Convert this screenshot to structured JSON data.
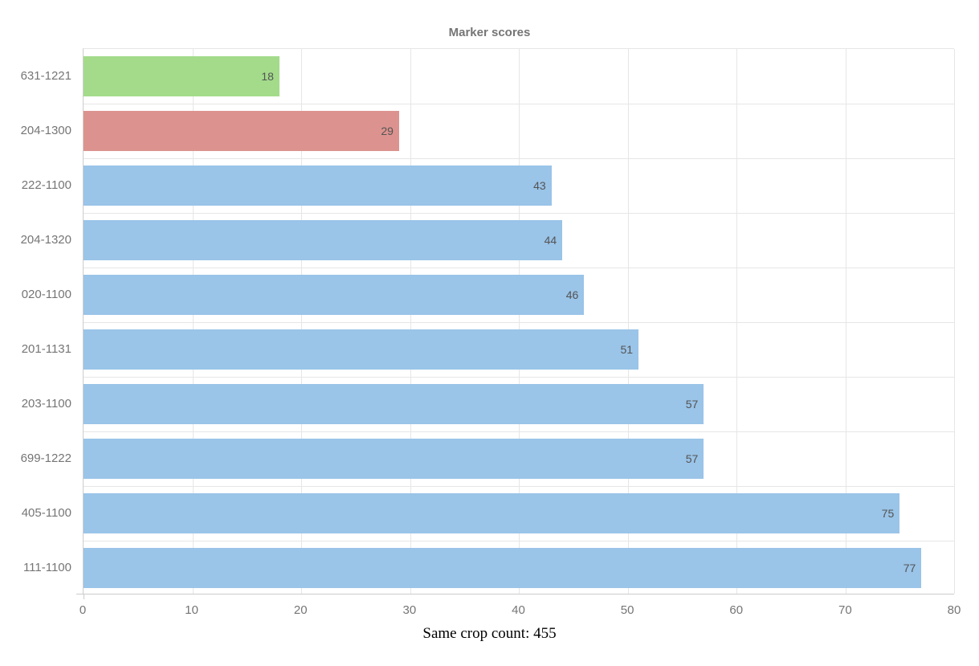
{
  "chart_data": {
    "type": "bar",
    "orientation": "horizontal",
    "title": "Marker scores",
    "categories": [
      "631-1221",
      "204-1300",
      "222-1100",
      "204-1320",
      "020-1100",
      "201-1131",
      "203-1100",
      "699-1222",
      "405-1100",
      "111-1100"
    ],
    "values": [
      18,
      29,
      43,
      44,
      46,
      51,
      57,
      57,
      75,
      77
    ],
    "bar_colors": [
      "#a3db8b",
      "#dc938f",
      "#9ac4e8",
      "#9ac4e8",
      "#9ac4e8",
      "#9ac4e8",
      "#9ac4e8",
      "#9ac4e8",
      "#9ac4e8",
      "#9ac4e8"
    ],
    "xlim": [
      0,
      80
    ],
    "x_ticks": [
      "0",
      "10",
      "20",
      "30",
      "40",
      "50",
      "60",
      "70",
      "80"
    ],
    "xlabel": "",
    "ylabel": "",
    "grid": true,
    "legend": "none",
    "value_labels": "inside-end"
  },
  "caption": "Same crop count: 455",
  "colors": {
    "title_text": "#757575",
    "category_text": "#757575",
    "axis_tick_text": "#757575",
    "value_label_text": "#545454",
    "gridline": "#e6e6e6",
    "axis_line": "#cccccc",
    "bar_blue": "#9ac4e8",
    "bar_green": "#a3db8b",
    "bar_red": "#dc938f",
    "background": "#ffffff"
  }
}
